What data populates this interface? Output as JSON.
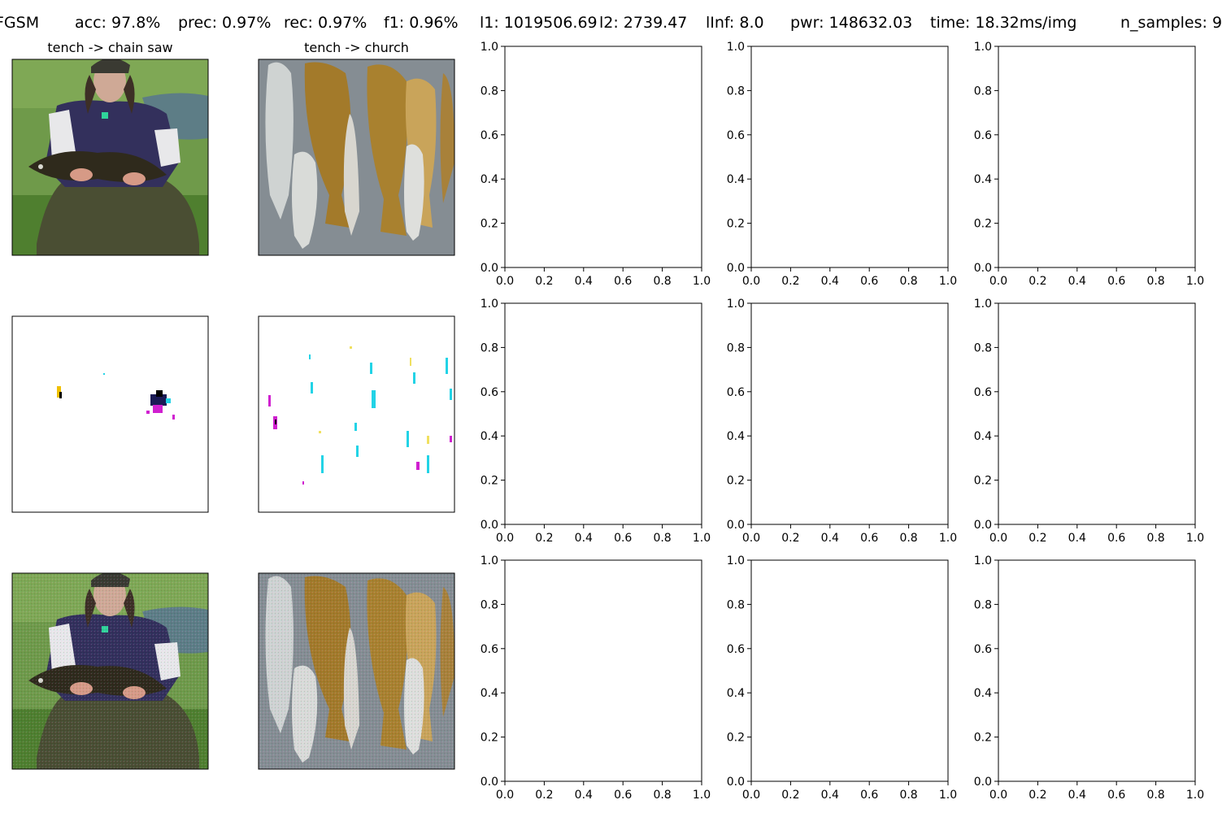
{
  "header": {
    "method": "FGSM",
    "acc": "acc: 97.8%",
    "prec": "prec: 0.97%",
    "rec": "rec: 0.97%",
    "f1": "f1: 0.96%",
    "l1": "l1: 1019506.69",
    "l2": "l2: 2739.47",
    "linf": "lInf: 8.0",
    "pwr": "pwr: 148632.03",
    "time": "time: 18.32ms/img",
    "n_samples": "n_samples: 9"
  },
  "panels": {
    "col0_title": "tench -> chain saw",
    "col1_title": "tench -> church"
  },
  "chart_data": {
    "type": "grid of images and empty plots",
    "images": [
      {
        "row": 0,
        "col": 0,
        "title": "tench -> chain saw",
        "content": "original-photo"
      },
      {
        "row": 0,
        "col": 1,
        "title": "tench -> church",
        "content": "original-photo"
      },
      {
        "row": 1,
        "col": 0,
        "title": "",
        "content": "perturbation"
      },
      {
        "row": 1,
        "col": 1,
        "title": "",
        "content": "perturbation"
      },
      {
        "row": 2,
        "col": 0,
        "title": "",
        "content": "adversarial-photo"
      },
      {
        "row": 2,
        "col": 1,
        "title": "",
        "content": "adversarial-photo"
      }
    ],
    "empty_axes": {
      "rows": 3,
      "cols": 3,
      "xlim": [
        0.0,
        1.0
      ],
      "ylim": [
        0.0,
        1.0
      ],
      "xticks": [
        "0.0",
        "0.2",
        "0.4",
        "0.6",
        "0.8",
        "1.0"
      ],
      "yticks": [
        "0.0",
        "0.2",
        "0.4",
        "0.6",
        "0.8",
        "1.0"
      ]
    }
  },
  "colors": {
    "sky": "#6f9f4c",
    "grass": "#5b8c3a",
    "hoodie": "#34305e",
    "fish_gold": "#a07c2c",
    "fish_silver": "#d6d8d8",
    "mat": "#7f8890",
    "pert_cyan": "#22d3e6",
    "pert_magenta": "#d020d0",
    "pert_yellow": "#f0c000"
  }
}
